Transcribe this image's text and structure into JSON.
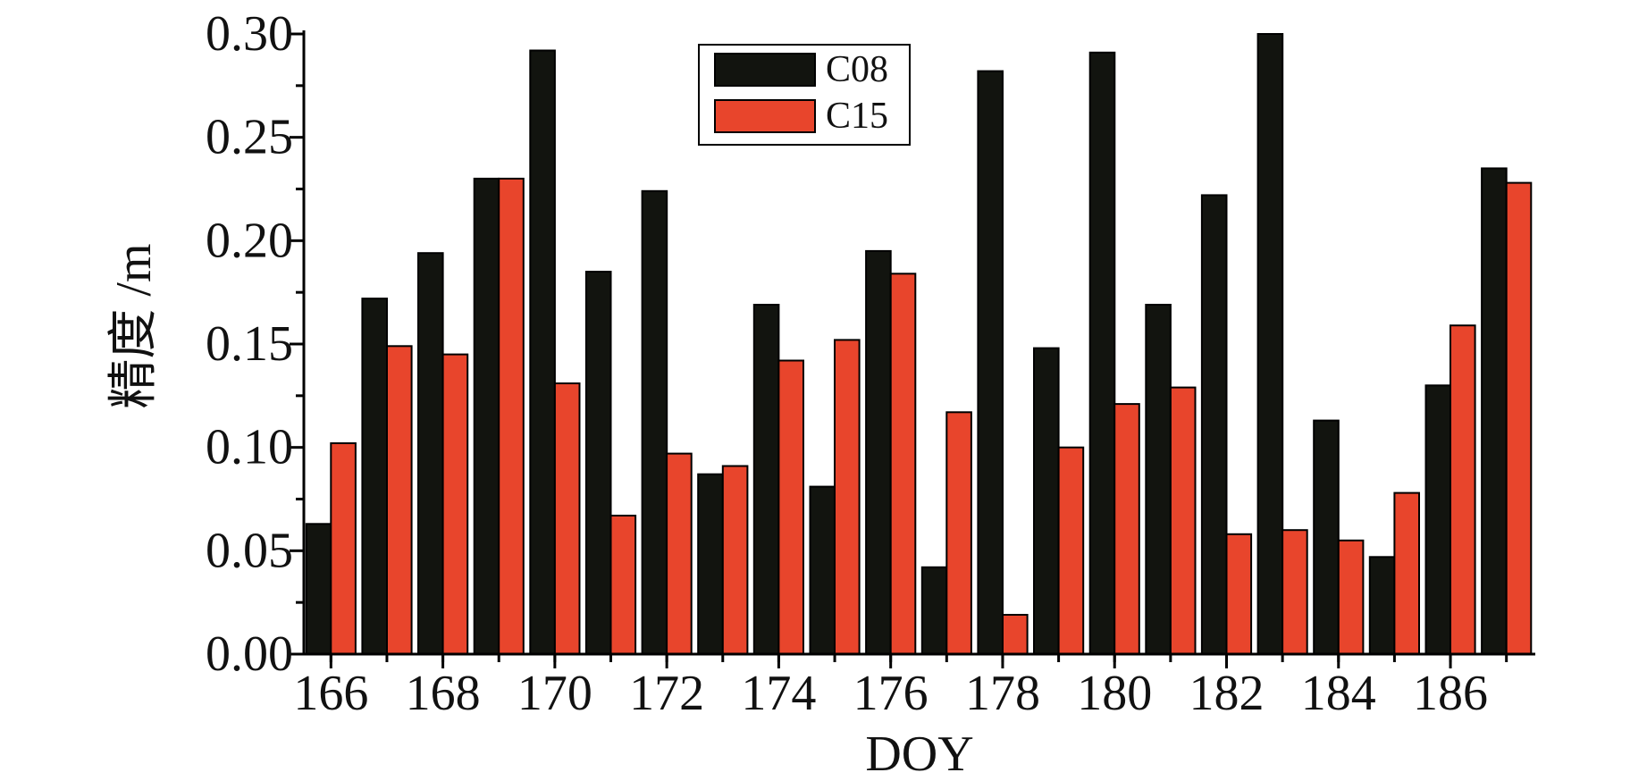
{
  "chart_data": {
    "type": "bar",
    "title": "",
    "xlabel": "DOY",
    "ylabel": "精度 /m",
    "ylim": [
      0,
      0.3
    ],
    "yticks": [
      "0.00",
      "0.05",
      "0.10",
      "0.15",
      "0.20",
      "0.25",
      "0.30"
    ],
    "xticks": [
      "166",
      "168",
      "170",
      "172",
      "174",
      "176",
      "178",
      "180",
      "182",
      "184",
      "186"
    ],
    "categories": [
      166,
      167,
      168,
      169,
      170,
      171,
      172,
      173,
      174,
      175,
      176,
      177,
      178,
      179,
      180,
      181,
      182,
      183,
      184,
      185,
      186,
      187
    ],
    "series": [
      {
        "name": "C08",
        "color": "#12140f",
        "values": [
          0.063,
          0.172,
          0.194,
          0.23,
          0.292,
          0.185,
          0.224,
          0.087,
          0.169,
          0.081,
          0.195,
          0.042,
          0.282,
          0.148,
          0.291,
          0.169,
          0.222,
          0.3,
          0.113,
          0.047,
          0.13,
          0.235
        ]
      },
      {
        "name": "C15",
        "color": "#e8452c",
        "values": [
          0.102,
          0.149,
          0.145,
          0.23,
          0.131,
          0.067,
          0.097,
          0.091,
          0.142,
          0.152,
          0.184,
          0.117,
          0.019,
          0.1,
          0.121,
          0.129,
          0.058,
          0.06,
          0.055,
          0.078,
          0.159,
          0.228
        ]
      }
    ],
    "grid": false,
    "legend_position": "top-center"
  }
}
